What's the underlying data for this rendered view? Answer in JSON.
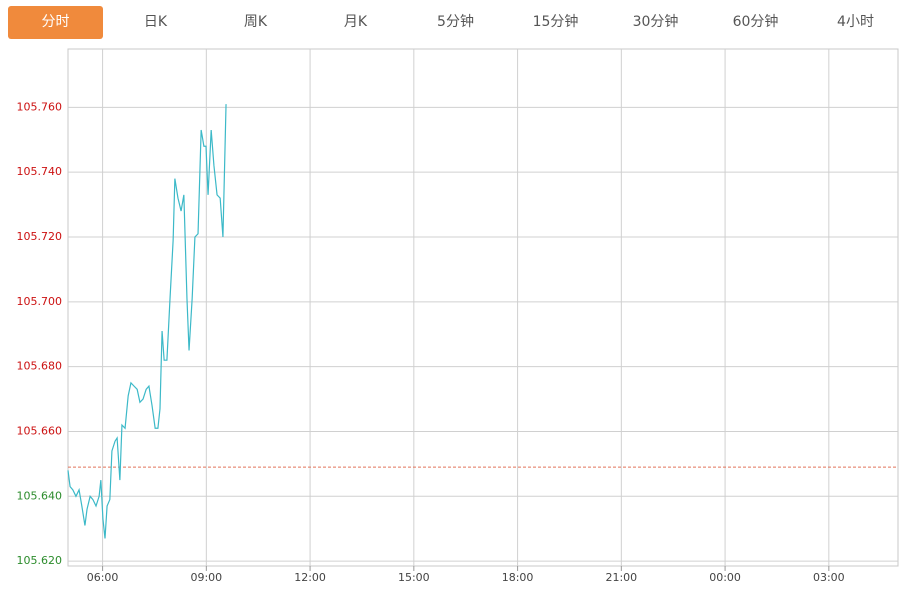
{
  "tabs": [
    "分时",
    "日K",
    "周K",
    "月K",
    "5分钟",
    "15分钟",
    "30分钟",
    "60分钟",
    "4小时"
  ],
  "active_tab": 0,
  "chart_data": {
    "type": "line",
    "x": [
      5.0,
      5.06,
      5.14,
      5.23,
      5.32,
      5.4,
      5.49,
      5.55,
      5.64,
      5.72,
      5.81,
      5.9,
      5.95,
      6.01,
      6.07,
      6.13,
      6.21,
      6.27,
      6.36,
      6.42,
      6.5,
      6.56,
      6.65,
      6.74,
      6.82,
      6.91,
      7.0,
      7.08,
      7.17,
      7.26,
      7.34,
      7.43,
      7.52,
      7.6,
      7.66,
      7.72,
      7.78,
      7.86,
      7.95,
      8.04,
      8.09,
      8.18,
      8.27,
      8.35,
      8.44,
      8.5,
      8.59,
      8.67,
      8.76,
      8.85,
      8.93,
      8.99,
      9.05,
      9.14,
      9.22,
      9.31,
      9.4,
      9.48,
      9.57
    ],
    "values": [
      105.648,
      105.643,
      105.642,
      105.64,
      105.642,
      105.637,
      105.631,
      105.636,
      105.64,
      105.639,
      105.637,
      105.64,
      105.645,
      105.633,
      105.627,
      105.637,
      105.639,
      105.654,
      105.657,
      105.658,
      105.645,
      105.662,
      105.661,
      105.671,
      105.675,
      105.674,
      105.673,
      105.669,
      105.67,
      105.673,
      105.674,
      105.668,
      105.661,
      105.661,
      105.667,
      105.691,
      105.682,
      105.682,
      105.701,
      105.719,
      105.738,
      105.732,
      105.728,
      105.733,
      105.701,
      105.685,
      105.701,
      105.72,
      105.721,
      105.753,
      105.748,
      105.748,
      105.733,
      105.753,
      105.742,
      105.733,
      105.732,
      105.72,
      105.761
    ],
    "color": "#3cb9c8",
    "baseline": 105.649,
    "baseline_color": "#e2735a",
    "up_color": "#cc1111",
    "down_color": "#2c8c2c",
    "xlim": [
      5,
      29
    ],
    "xticks": [
      {
        "value": 6,
        "label": "06:00"
      },
      {
        "value": 9,
        "label": "09:00"
      },
      {
        "value": 12,
        "label": "12:00"
      },
      {
        "value": 15,
        "label": "15:00"
      },
      {
        "value": 18,
        "label": "18:00"
      },
      {
        "value": 21,
        "label": "21:00"
      },
      {
        "value": 24,
        "label": "00:00"
      },
      {
        "value": 27,
        "label": "03:00"
      }
    ],
    "ylim": [
      105.6185,
      105.778
    ],
    "yticks": [
      {
        "value": 105.62,
        "label": "105.620"
      },
      {
        "value": 105.64,
        "label": "105.640"
      },
      {
        "value": 105.66,
        "label": "105.660"
      },
      {
        "value": 105.68,
        "label": "105.680"
      },
      {
        "value": 105.7,
        "label": "105.700"
      },
      {
        "value": 105.72,
        "label": "105.720"
      },
      {
        "value": 105.74,
        "label": "105.740"
      },
      {
        "value": 105.76,
        "label": "105.760"
      }
    ],
    "grid": true
  }
}
